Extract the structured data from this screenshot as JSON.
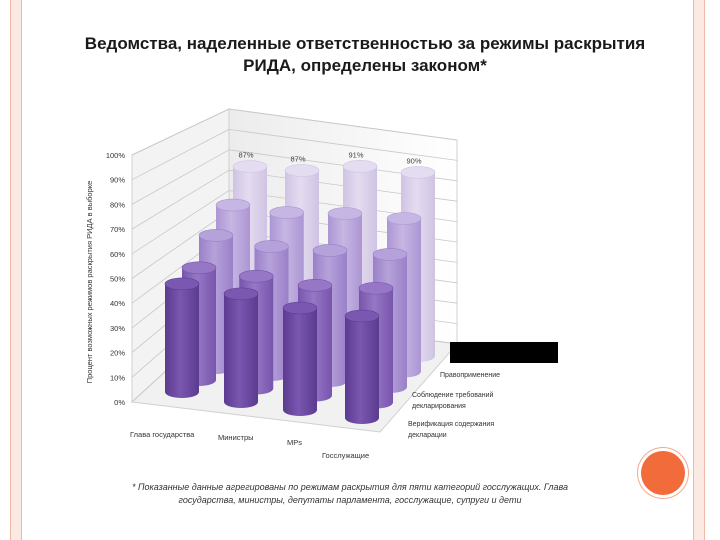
{
  "title_line1": "Ведомства, наделенные ответственностью за режимы раскрытия",
  "title_line2": "РИДА, определены законом*",
  "footnote_line1": "* Показанные данные агрегированы по режимам раскрытия для пяти категорий госслужащих. Глава",
  "footnote_line2": "государства, министры, депутаты парламента, госслужащие, супруги и дети",
  "colors": {
    "frame": "#fbe9e3",
    "accent_dot": "#f26b3a",
    "row_back": "#cfc3e3",
    "row_mid": "#9a80c8",
    "row_front_mid": "#7755ad",
    "row_front": "#5b3b8f"
  },
  "chart_data": {
    "type": "bar",
    "style": "3d-cylinder",
    "ylabel": "Процент возможных режимов раскрытия РИДА в выборке",
    "ylim": [
      0,
      100
    ],
    "ytick_labels": [
      "0%",
      "10%",
      "20%",
      "30%",
      "40%",
      "50%",
      "60%",
      "70%",
      "80%",
      "90%",
      "100%"
    ],
    "categories": [
      "Глава государства",
      "Министры",
      "MPs",
      "Госслужащие"
    ],
    "depth_labels": [
      "Правоприменение",
      "Соблюдение требований декларирования",
      "Верификация содержания декларации"
    ],
    "data_labels_back_row": [
      "87%",
      "87%",
      "91%",
      "90%"
    ],
    "series": [
      {
        "values": [
          87,
          87,
          91,
          90
        ]
      },
      {
        "values": [
          74,
          73,
          75,
          75
        ]
      },
      {
        "values": [
          65,
          63,
          64,
          65
        ]
      },
      {
        "values": [
          55,
          55,
          54,
          56
        ]
      },
      {
        "values": [
          53,
          53,
          50,
          50
        ]
      }
    ],
    "grid": true
  }
}
